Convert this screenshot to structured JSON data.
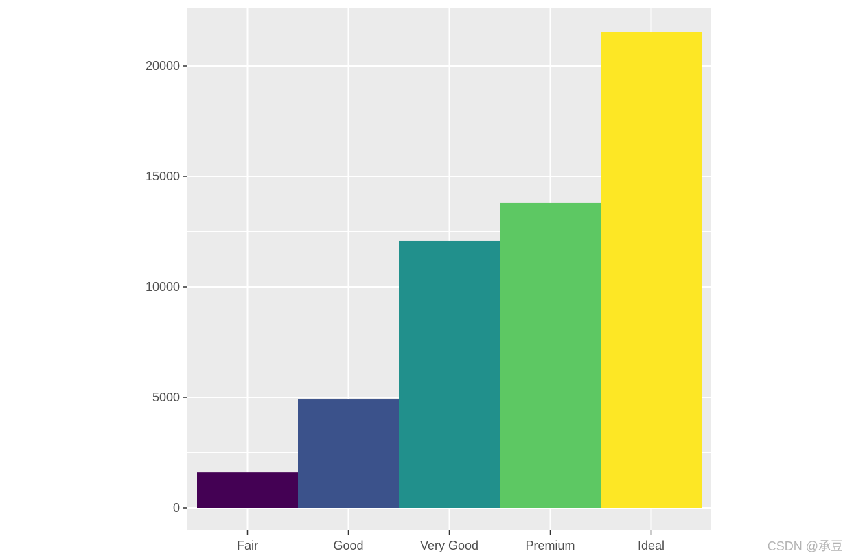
{
  "chart_data": {
    "type": "bar",
    "title": "",
    "xlabel": "",
    "ylabel": "",
    "categories": [
      "Fair",
      "Good",
      "Very Good",
      "Premium",
      "Ideal"
    ],
    "values": [
      1610,
      4906,
      12082,
      13791,
      21551
    ],
    "colors": [
      "#440154",
      "#3B528B",
      "#21908C",
      "#5DC863",
      "#FDE725"
    ],
    "ylim": [
      -1000,
      22600
    ],
    "yticks": [
      0,
      5000,
      10000,
      15000,
      20000
    ],
    "yticks_minor": [
      2500,
      7500,
      12500,
      17500
    ],
    "panel_background": "#EBEBEB",
    "grid_color": "#FFFFFF",
    "grid": true,
    "legend": "none"
  },
  "watermark": "CSDN @承豆"
}
